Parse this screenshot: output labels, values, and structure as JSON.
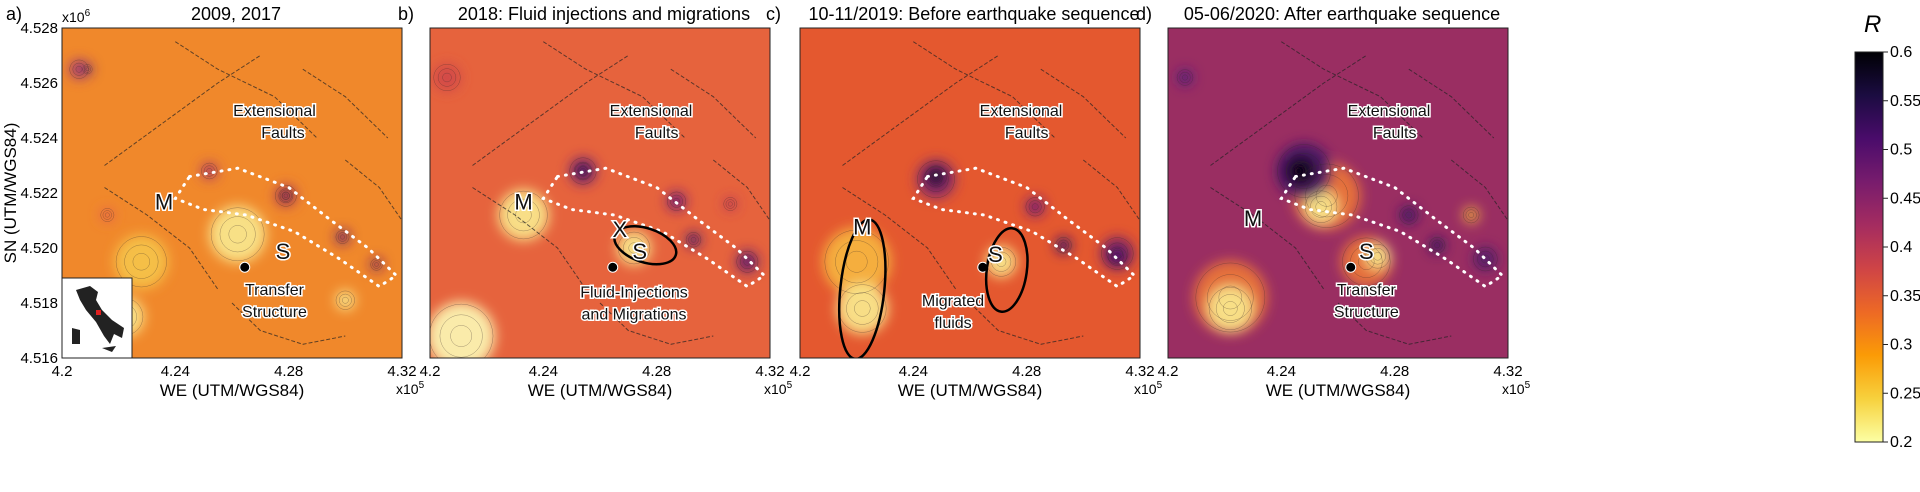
{
  "panels": [
    {
      "letter": "a)",
      "title": "2009, 2017",
      "bg": "#f0882b",
      "blobs": [
        {
          "x": 4.206,
          "y": 4.5265,
          "r": 0.35,
          "c": "#a23a73"
        },
        {
          "x": 4.209,
          "y": 4.5265,
          "r": 0.18,
          "c": "#5a1d7a"
        },
        {
          "x": 4.228,
          "y": 4.5195,
          "r": 0.95,
          "c": "#f5c24a"
        },
        {
          "x": 4.262,
          "y": 4.5205,
          "r": 1.0,
          "c": "#f9e58a"
        },
        {
          "x": 4.222,
          "y": 4.5175,
          "r": 0.7,
          "c": "#f9e58a"
        },
        {
          "x": 4.252,
          "y": 4.5228,
          "r": 0.3,
          "c": "#b03a62"
        },
        {
          "x": 4.279,
          "y": 4.5219,
          "r": 0.4,
          "c": "#c8494e"
        },
        {
          "x": 4.279,
          "y": 4.5219,
          "r": 0.22,
          "c": "#2a0e52"
        },
        {
          "x": 4.299,
          "y": 4.5204,
          "r": 0.25,
          "c": "#6b1a6b"
        },
        {
          "x": 4.311,
          "y": 4.5194,
          "r": 0.22,
          "c": "#7a1f5f"
        },
        {
          "x": 4.216,
          "y": 4.5212,
          "r": 0.25,
          "c": "#e8644a"
        },
        {
          "x": 4.3,
          "y": 4.5181,
          "r": 0.35,
          "c": "#f9e58a"
        }
      ],
      "labels": [
        {
          "text": "Extensional",
          "x": 4.275,
          "y": 4.5248
        },
        {
          "text": "Faults",
          "x": 4.278,
          "y": 4.524
        },
        {
          "text": "M",
          "x": 4.236,
          "y": 4.5214
        },
        {
          "text": "S",
          "x": 4.278,
          "y": 4.5196
        },
        {
          "text": "Transfer",
          "x": 4.275,
          "y": 4.5183
        },
        {
          "text": "Structure",
          "x": 4.275,
          "y": 4.5175
        }
      ]
    },
    {
      "letter": "b)",
      "title": "2018: Fluid injections and migrations",
      "bg": "#e6633d",
      "blobs": [
        {
          "x": 4.206,
          "y": 4.5262,
          "r": 0.5,
          "c": "#d24a4a"
        },
        {
          "x": 4.233,
          "y": 4.5212,
          "r": 0.9,
          "c": "#f9e58a"
        },
        {
          "x": 4.211,
          "y": 4.5168,
          "r": 1.2,
          "c": "#fbf2b0"
        },
        {
          "x": 4.272,
          "y": 4.52,
          "r": 0.6,
          "c": "#f9e58a"
        },
        {
          "x": 4.254,
          "y": 4.5228,
          "r": 0.5,
          "c": "#8a2a6a"
        },
        {
          "x": 4.254,
          "y": 4.5228,
          "r": 0.3,
          "c": "#3b1560"
        },
        {
          "x": 4.287,
          "y": 4.5217,
          "r": 0.35,
          "c": "#7a2070"
        },
        {
          "x": 4.293,
          "y": 4.5203,
          "r": 0.28,
          "c": "#5a1a6a"
        },
        {
          "x": 4.312,
          "y": 4.5195,
          "r": 0.4,
          "c": "#6a1c6a"
        },
        {
          "x": 4.306,
          "y": 4.5216,
          "r": 0.25,
          "c": "#c03a55"
        }
      ],
      "labels": [
        {
          "text": "Extensional",
          "x": 4.278,
          "y": 4.5248
        },
        {
          "text": "Faults",
          "x": 4.28,
          "y": 4.524
        },
        {
          "text": "M",
          "x": 4.233,
          "y": 4.5214
        },
        {
          "text": "X",
          "x": 4.267,
          "y": 4.5204
        },
        {
          "text": "S",
          "x": 4.274,
          "y": 4.5196
        },
        {
          "text": "Fluid-Injections",
          "x": 4.272,
          "y": 4.5182
        },
        {
          "text": "and Migrations",
          "x": 4.272,
          "y": 4.5174
        }
      ]
    },
    {
      "letter": "c)",
      "title": "10-11/2019: Before earthquake sequence",
      "bg": "#e4582f",
      "blobs": [
        {
          "x": 4.22,
          "y": 4.5195,
          "r": 1.2,
          "c": "#f5b23f"
        },
        {
          "x": 4.222,
          "y": 4.5178,
          "r": 0.9,
          "c": "#f9e58a"
        },
        {
          "x": 4.271,
          "y": 4.5195,
          "r": 0.55,
          "c": "#f9e58a"
        },
        {
          "x": 4.248,
          "y": 4.5225,
          "r": 0.7,
          "c": "#8a2a6a"
        },
        {
          "x": 4.248,
          "y": 4.5226,
          "r": 0.4,
          "c": "#2a0e52"
        },
        {
          "x": 4.248,
          "y": 4.5226,
          "r": 0.2,
          "c": "#0b0616"
        },
        {
          "x": 4.283,
          "y": 4.5215,
          "r": 0.35,
          "c": "#7a2070"
        },
        {
          "x": 4.293,
          "y": 4.5201,
          "r": 0.3,
          "c": "#4a1866"
        },
        {
          "x": 4.312,
          "y": 4.5198,
          "r": 0.6,
          "c": "#7e2466"
        },
        {
          "x": 4.312,
          "y": 4.5197,
          "r": 0.35,
          "c": "#4a1866"
        }
      ],
      "labels": [
        {
          "text": "Extensional",
          "x": 4.278,
          "y": 4.5248
        },
        {
          "text": "Faults",
          "x": 4.28,
          "y": 4.524
        },
        {
          "text": "M",
          "x": 4.222,
          "y": 4.5205
        },
        {
          "text": "S",
          "x": 4.269,
          "y": 4.5195
        },
        {
          "text": "Migrated",
          "x": 4.254,
          "y": 4.5179
        },
        {
          "text": "fluids",
          "x": 4.254,
          "y": 4.5171
        }
      ]
    },
    {
      "letter": "d)",
      "title": "05-06/2020: After earthquake sequence",
      "bg": "#9a2e62",
      "blobs": [
        {
          "x": 4.222,
          "y": 4.5182,
          "r": 1.3,
          "c": "#e9743a"
        },
        {
          "x": 4.222,
          "y": 4.5178,
          "r": 0.8,
          "c": "#f9e58a"
        },
        {
          "x": 4.27,
          "y": 4.5195,
          "r": 0.9,
          "c": "#e9743a"
        },
        {
          "x": 4.274,
          "y": 4.5197,
          "r": 0.45,
          "c": "#f9e58a"
        },
        {
          "x": 4.256,
          "y": 4.5219,
          "r": 1.2,
          "c": "#e9743a"
        },
        {
          "x": 4.254,
          "y": 4.5215,
          "r": 0.6,
          "c": "#f9e58a"
        },
        {
          "x": 4.248,
          "y": 4.5228,
          "r": 1.0,
          "c": "#4a1866"
        },
        {
          "x": 4.247,
          "y": 4.5228,
          "r": 0.55,
          "c": "#150826"
        },
        {
          "x": 4.246,
          "y": 4.5228,
          "r": 0.3,
          "c": "#000000"
        },
        {
          "x": 4.206,
          "y": 4.5262,
          "r": 0.3,
          "c": "#5a1d7a"
        },
        {
          "x": 4.285,
          "y": 4.5212,
          "r": 0.35,
          "c": "#4a1866"
        },
        {
          "x": 4.295,
          "y": 4.5201,
          "r": 0.3,
          "c": "#3b1560"
        },
        {
          "x": 4.312,
          "y": 4.5196,
          "r": 0.45,
          "c": "#5a1a6a"
        },
        {
          "x": 4.307,
          "y": 4.5212,
          "r": 0.3,
          "c": "#e8a040"
        }
      ],
      "labels": [
        {
          "text": "Extensional",
          "x": 4.278,
          "y": 4.5248
        },
        {
          "text": "Faults",
          "x": 4.28,
          "y": 4.524
        },
        {
          "text": "M",
          "x": 4.23,
          "y": 4.5208
        },
        {
          "text": "S",
          "x": 4.27,
          "y": 4.5196
        },
        {
          "text": "Transfer",
          "x": 4.27,
          "y": 4.5183
        },
        {
          "text": "Structure",
          "x": 4.27,
          "y": 4.5175
        }
      ]
    }
  ],
  "axes": {
    "xlabel": "WE (UTM/WGS84)",
    "ylabel": "SN (UTM/WGS84)",
    "xticks": [
      "4.2",
      "4.24",
      "4.28",
      "4.32"
    ],
    "yticks": [
      "4.528",
      "4.526",
      "4.524",
      "4.522",
      "4.520",
      "4.518",
      "4.516"
    ],
    "xmult": "x10",
    "xexp": "5",
    "ymult": "x10",
    "yexp": "6",
    "xlim": [
      4.2,
      4.32
    ],
    "ylim": [
      4.516,
      4.528
    ]
  },
  "colorbar": {
    "label": "R",
    "ticks": [
      "0.6",
      "0.55",
      "0.5",
      "0.45",
      "0.4",
      "0.35",
      "0.3",
      "0.25",
      "0.2"
    ],
    "stops": [
      "#000004",
      "#1b0c41",
      "#4a0c6b",
      "#781c6d",
      "#a52c60",
      "#cf4446",
      "#ed6925",
      "#fb9b06",
      "#f7d13d",
      "#fcffa4"
    ]
  }
}
